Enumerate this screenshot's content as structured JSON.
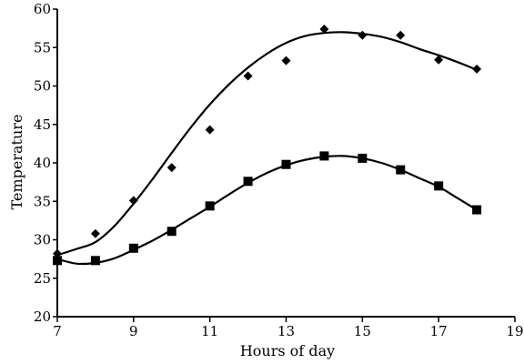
{
  "chart_data": {
    "type": "scatter",
    "title": "",
    "xlabel": "Hours of day",
    "ylabel": "Temperature",
    "xlim": [
      7,
      19
    ],
    "ylim": [
      20,
      60
    ],
    "xticks": [
      7,
      9,
      11,
      13,
      15,
      17,
      19
    ],
    "yticks": [
      20,
      25,
      30,
      35,
      40,
      45,
      50,
      55,
      60
    ],
    "grid": false,
    "legend": "none",
    "series": [
      {
        "marker": "diamond",
        "color": "#000000",
        "x": [
          7,
          8,
          9,
          10,
          11,
          12,
          13,
          14,
          15,
          16,
          17,
          18
        ],
        "y": [
          28.2,
          30.8,
          35.1,
          39.4,
          44.3,
          51.3,
          53.3,
          57.4,
          56.6,
          56.6,
          53.4,
          52.2
        ],
        "fit_curve": {
          "x": [
            7,
            7.5,
            8,
            8.5,
            9,
            9.5,
            10,
            10.5,
            11,
            11.5,
            12,
            12.5,
            13,
            13.5,
            14,
            14.5,
            15,
            15.5,
            16,
            16.5,
            17,
            17.5,
            18
          ],
          "y": [
            28.0,
            28.8,
            29.7,
            31.8,
            34.7,
            37.9,
            41.3,
            44.6,
            47.6,
            50.2,
            52.4,
            54.2,
            55.6,
            56.5,
            56.9,
            57.0,
            56.8,
            56.4,
            55.7,
            54.8,
            54.0,
            53.1,
            52.1
          ]
        }
      },
      {
        "marker": "square",
        "color": "#000000",
        "x": [
          7,
          8,
          9,
          10,
          11,
          12,
          13,
          14,
          15,
          16,
          17,
          18
        ],
        "y": [
          27.3,
          27.3,
          28.9,
          31.1,
          34.4,
          37.6,
          39.8,
          40.9,
          40.6,
          39.1,
          37.0,
          33.9
        ],
        "fit_curve": {
          "x": [
            7,
            7.5,
            8,
            8.5,
            9,
            9.5,
            10,
            10.5,
            11,
            11.5,
            12,
            12.5,
            13,
            13.5,
            14,
            14.5,
            15,
            15.5,
            16,
            16.5,
            17,
            17.5,
            18
          ],
          "y": [
            27.5,
            26.9,
            27.0,
            27.6,
            28.7,
            29.9,
            31.3,
            32.8,
            34.3,
            35.9,
            37.4,
            38.7,
            39.7,
            40.4,
            40.8,
            40.9,
            40.6,
            40.0,
            39.1,
            38.0,
            36.9,
            35.4,
            33.9
          ]
        }
      }
    ]
  }
}
